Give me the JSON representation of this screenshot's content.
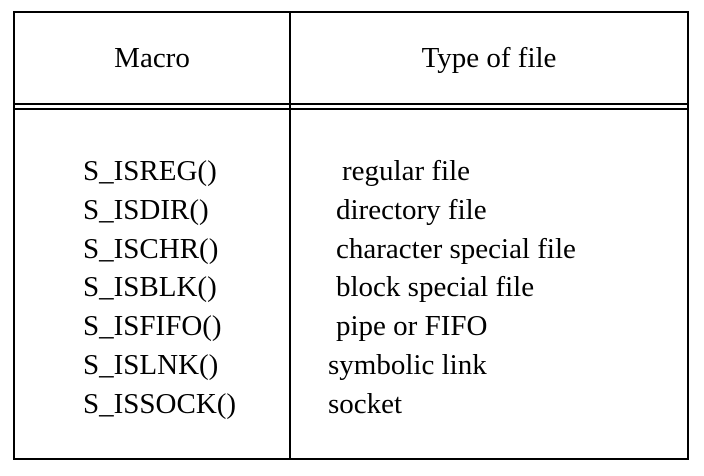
{
  "table": {
    "headers": {
      "macro": "Macro",
      "type_of_file": "Type of file"
    },
    "rows": [
      {
        "macro": "S_ISREG()",
        "type": "regular file"
      },
      {
        "macro": "S_ISDIR()",
        "type": "directory file"
      },
      {
        "macro": "S_ISCHR()",
        "type": "character special file"
      },
      {
        "macro": "S_ISBLK()",
        "type": "block special file"
      },
      {
        "macro": "S_ISFIFO()",
        "type": "pipe or FIFO"
      },
      {
        "macro": "S_ISLNK()",
        "type": "symbolic link"
      },
      {
        "macro": "S_ISSOCK()",
        "type": "socket"
      }
    ]
  }
}
